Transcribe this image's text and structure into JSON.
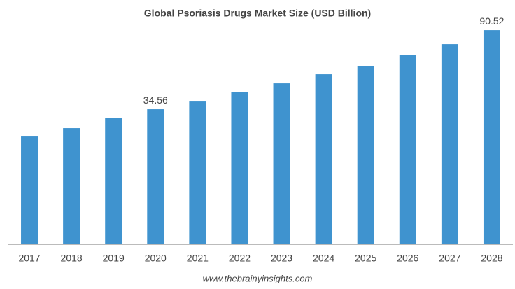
{
  "chart_data": {
    "type": "bar",
    "title": "Global Psoriasis Drugs Market Size (USD Billion)",
    "categories": [
      "2017",
      "2018",
      "2019",
      "2020",
      "2021",
      "2022",
      "2023",
      "2024",
      "2025",
      "2026",
      "2027",
      "2028"
    ],
    "values": [
      15.25,
      21.19,
      28.62,
      34.56,
      40.01,
      46.94,
      52.88,
      59.32,
      65.26,
      73.19,
      80.61,
      90.52
    ],
    "value_labels": [
      null,
      null,
      null,
      "34.56",
      null,
      null,
      null,
      null,
      null,
      null,
      null,
      "90.52"
    ],
    "color": "#3f93cf",
    "ylim": [
      -61,
      97
    ],
    "source": "www.thebrainyinsights.com"
  }
}
